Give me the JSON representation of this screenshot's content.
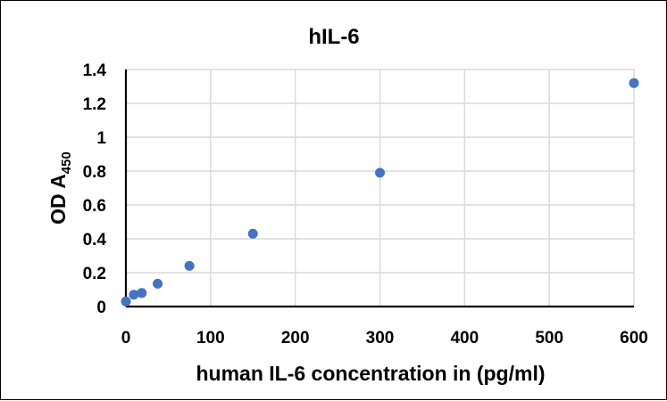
{
  "chart_data": {
    "type": "scatter",
    "title": "hIL-6",
    "xlabel": "human IL-6 concentration in (pg/ml)",
    "ylabel": {
      "main": "OD A",
      "subscript": "450"
    },
    "xlim": [
      0,
      600
    ],
    "ylim": [
      0,
      1.4
    ],
    "x_ticks": [
      "0",
      "100",
      "200",
      "300",
      "400",
      "500",
      "600"
    ],
    "y_ticks": [
      "0",
      "0.2",
      "0.4",
      "0.6",
      "0.8",
      "1",
      "1.2",
      "1.4"
    ],
    "x_tick_values": [
      0,
      100,
      200,
      300,
      400,
      500,
      600
    ],
    "y_tick_values": [
      0,
      0.2,
      0.4,
      0.6,
      0.8,
      1,
      1.2,
      1.4
    ],
    "grid": true,
    "legend": "none",
    "marker_color": "#4472c4",
    "series": [
      {
        "points": [
          {
            "x": 0,
            "y": 0.03
          },
          {
            "x": 9.4,
            "y": 0.07
          },
          {
            "x": 18.75,
            "y": 0.08
          },
          {
            "x": 37.5,
            "y": 0.135
          },
          {
            "x": 75,
            "y": 0.24
          },
          {
            "x": 150,
            "y": 0.43
          },
          {
            "x": 300,
            "y": 0.79
          },
          {
            "x": 600,
            "y": 1.32
          }
        ]
      }
    ]
  }
}
